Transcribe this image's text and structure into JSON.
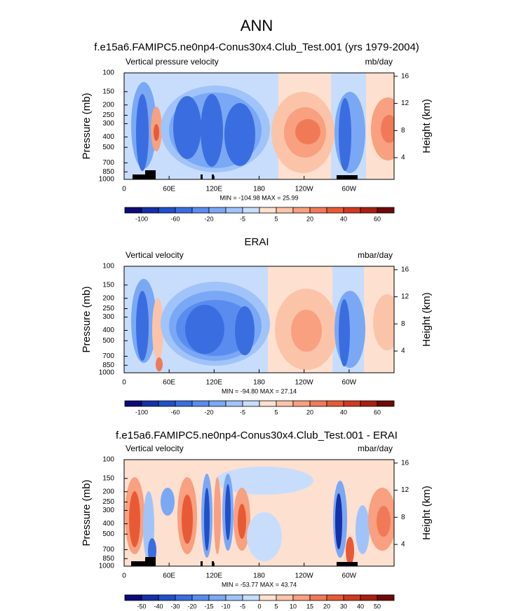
{
  "title": "ANN",
  "chart_data": [
    {
      "type": "contour",
      "title": "f.e15a6.FAMIPC5.ne0np4-Conus30x4.Club_Test.001 (yrs 1979-2004)",
      "left_subtitle": "Vertical pressure velocity",
      "right_subtitle": "mb/day",
      "ylabel": "Pressure (mb)",
      "y2label": "Height (km)",
      "xlim": [
        0,
        360
      ],
      "xticks": [
        0,
        {
          "value": 60,
          "label": "60E"
        },
        {
          "value": 120,
          "label": "120E"
        },
        180,
        {
          "value": 240,
          "label": "120W"
        },
        {
          "value": 300,
          "label": "60W"
        }
      ],
      "ylim": [
        1000,
        100
      ],
      "ylog": true,
      "yticks": [
        100,
        150,
        200,
        250,
        300,
        400,
        500,
        700,
        850,
        1000
      ],
      "y2lim": [
        0.8,
        16.5
      ],
      "y2ticks": [
        4,
        8,
        12,
        16
      ],
      "stats": "MIN = -104.98  MAX =  25.99",
      "colorbar": {
        "colors": [
          "#0a0a78",
          "#1530a8",
          "#2050c8",
          "#3a6ee0",
          "#5a8cf0",
          "#7aa8f5",
          "#a0c4fa",
          "#c8ddfc",
          "#fde0d0",
          "#fbc4a8",
          "#f8a080",
          "#f07a58",
          "#e85a35",
          "#d03a20",
          "#a82010",
          "#700808"
        ],
        "labels": [
          -100,
          -60,
          -20,
          -5,
          5,
          20,
          40,
          60
        ]
      }
    },
    {
      "type": "contour",
      "title": "ERAI",
      "left_subtitle": "Vertical velocity",
      "right_subtitle": "mbar/day",
      "ylabel": "Pressure (mb)",
      "y2label": "Height (km)",
      "xlim": [
        0,
        360
      ],
      "xticks": [
        0,
        {
          "value": 60,
          "label": "60E"
        },
        {
          "value": 120,
          "label": "120E"
        },
        180,
        {
          "value": 240,
          "label": "120W"
        },
        {
          "value": 300,
          "label": "60W"
        }
      ],
      "ylim": [
        1000,
        100
      ],
      "ylog": true,
      "yticks": [
        100,
        150,
        200,
        250,
        300,
        400,
        500,
        700,
        850,
        1000
      ],
      "y2lim": [
        0.8,
        16.5
      ],
      "y2ticks": [
        4,
        8,
        12,
        16
      ],
      "stats": "MIN = -94.80  MAX =  27.14",
      "colorbar": {
        "colors": [
          "#0a0a78",
          "#1530a8",
          "#2050c8",
          "#3a6ee0",
          "#5a8cf0",
          "#7aa8f5",
          "#a0c4fa",
          "#c8ddfc",
          "#fde0d0",
          "#fbc4a8",
          "#f8a080",
          "#f07a58",
          "#e85a35",
          "#d03a20",
          "#a82010",
          "#700808"
        ],
        "labels": [
          -100,
          -60,
          -20,
          -5,
          5,
          20,
          40,
          60
        ]
      }
    },
    {
      "type": "contour",
      "title": "f.e15a6.FAMIPC5.ne0np4-Conus30x4.Club_Test.001 - ERAI",
      "left_subtitle": "Vertical velocity",
      "right_subtitle": "mbar/day",
      "ylabel": "Pressure (mb)",
      "y2label": "Height (km)",
      "xlim": [
        0,
        360
      ],
      "xticks": [
        0,
        {
          "value": 60,
          "label": "60E"
        },
        {
          "value": 120,
          "label": "120E"
        },
        180,
        {
          "value": 240,
          "label": "120W"
        },
        {
          "value": 300,
          "label": "60W"
        }
      ],
      "ylim": [
        1000,
        100
      ],
      "ylog": true,
      "yticks": [
        100,
        150,
        200,
        250,
        300,
        400,
        500,
        700,
        850,
        1000
      ],
      "y2lim": [
        0.8,
        16.5
      ],
      "y2ticks": [
        4,
        8,
        12,
        16
      ],
      "stats": "MIN = -53.77  MAX =  43.74",
      "colorbar": {
        "colors": [
          "#0a0a78",
          "#1530a8",
          "#2050c8",
          "#3a6ee0",
          "#5a8cf0",
          "#7aa8f5",
          "#a0c4fa",
          "#c8ddfc",
          "#fde0d0",
          "#fbc4a8",
          "#f8a080",
          "#f07a58",
          "#e85a35",
          "#d03a20",
          "#a82010",
          "#700808"
        ],
        "labels": [
          -50,
          -40,
          -30,
          -20,
          -15,
          -10,
          -5,
          0,
          5,
          10,
          15,
          20,
          30,
          40,
          50
        ]
      }
    }
  ]
}
